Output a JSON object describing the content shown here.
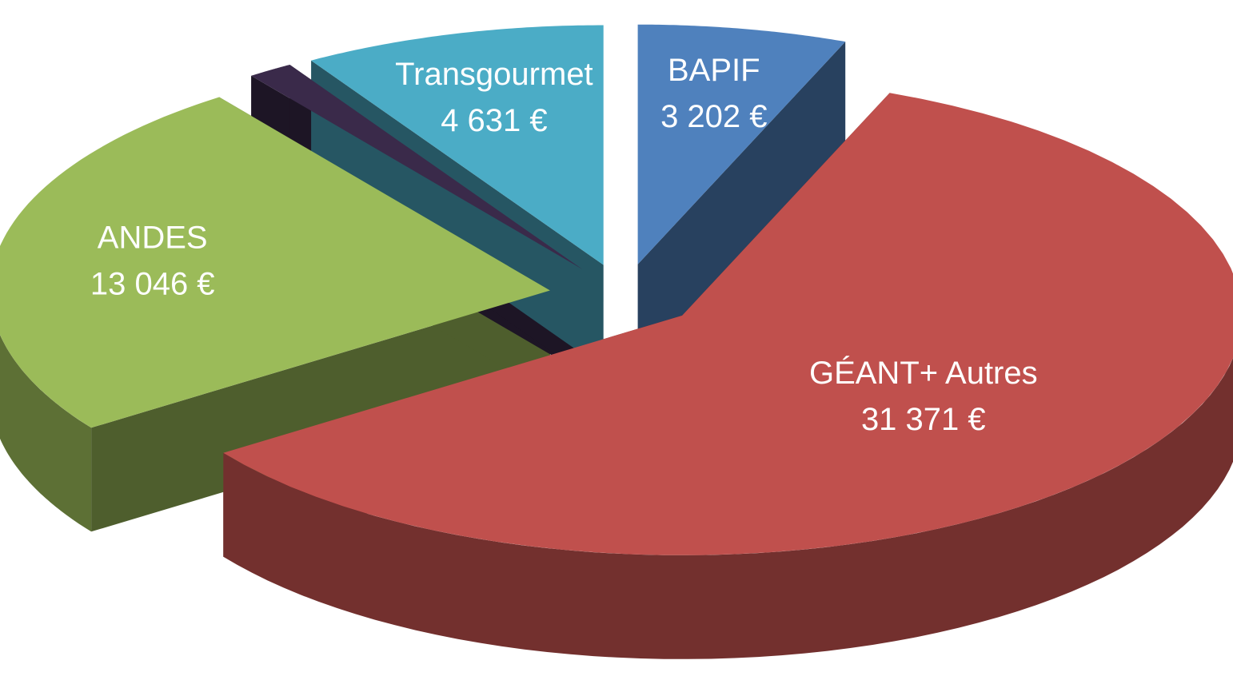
{
  "chart_data": {
    "type": "pie",
    "categories": [
      "BAPIF",
      "GÉANT+ Autres",
      "ANDES",
      null,
      "Transgourmet"
    ],
    "values": [
      3202,
      31371,
      13046,
      700,
      4631
    ],
    "value_labels": [
      "3 202 €",
      "31 371 €",
      "13 046 €",
      null,
      "4 631 €"
    ],
    "colors": [
      "#4f81bd",
      "#c0504d",
      "#9bbb59",
      "#3a2a4a",
      "#4bacc6"
    ]
  }
}
